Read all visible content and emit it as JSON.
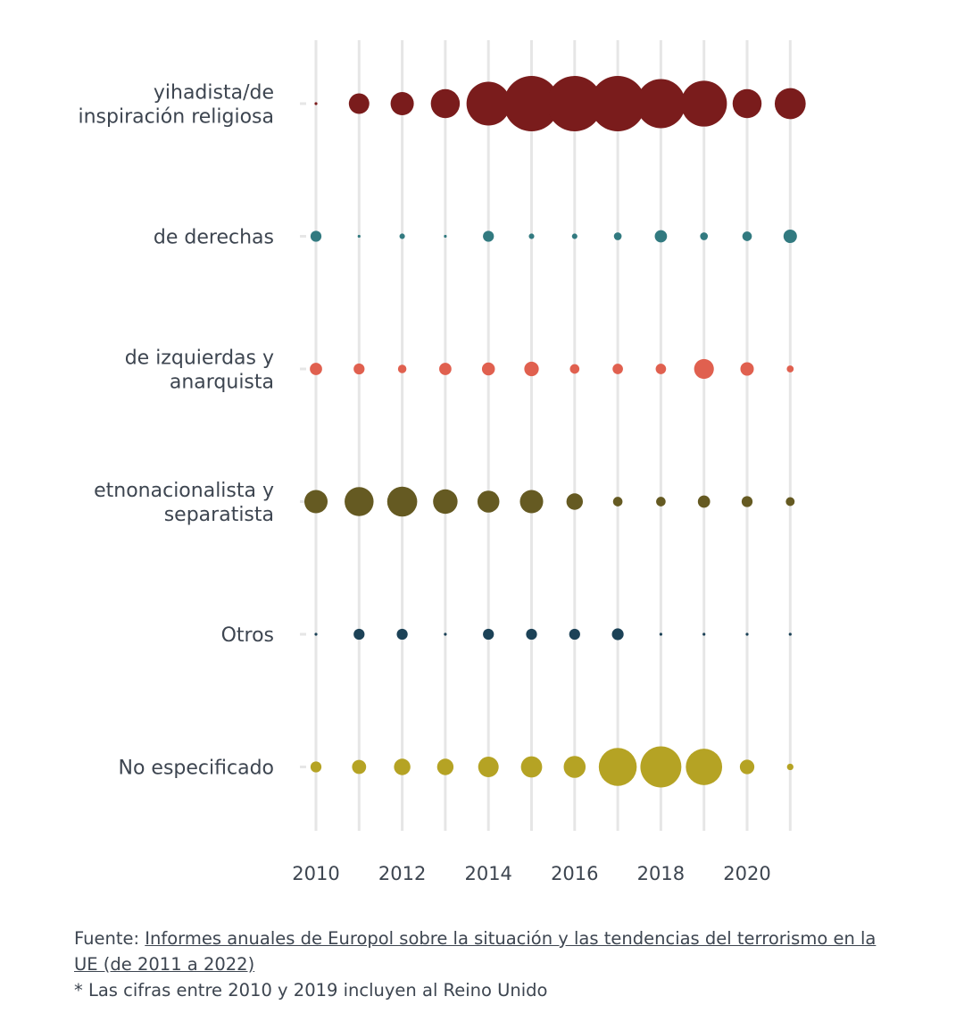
{
  "chart_data": {
    "type": "bubble",
    "title": "",
    "xlabel": "",
    "ylabel": "",
    "years": [
      2010,
      2011,
      2012,
      2013,
      2014,
      2015,
      2016,
      2017,
      2018,
      2019,
      2020,
      2021
    ],
    "x_ticks": [
      "2010",
      "2012",
      "2014",
      "2016",
      "2018",
      "2020"
    ],
    "grid": true,
    "series": [
      {
        "name": [
          "yihadista/de",
          "inspiración religiosa"
        ],
        "color": "#7a1c1c",
        "values": [
          0,
          7,
          9,
          14,
          32,
          51,
          51,
          51,
          40,
          35,
          14,
          16
        ]
      },
      {
        "name": [
          "de derechas"
        ],
        "color": "#327a80",
        "values": [
          2,
          0,
          0.5,
          0,
          2,
          0.5,
          0.5,
          1,
          2.5,
          1,
          1.5,
          3
        ]
      },
      {
        "name": [
          "de izquierdas y",
          "anarquista"
        ],
        "color": "#e0604f",
        "values": [
          2.5,
          2,
          1.2,
          2.5,
          2.8,
          3.5,
          1.5,
          1.8,
          1.8,
          6.5,
          3,
          0.8
        ]
      },
      {
        "name": [
          "etnonacionalista y",
          "separatista"
        ],
        "color": "#655a22",
        "values": [
          9,
          14,
          15,
          10,
          8,
          9,
          4.5,
          1.5,
          1.5,
          2.5,
          2,
          1.3
        ]
      },
      {
        "name": [
          "Otros"
        ],
        "color": "#1c4257",
        "values": [
          0,
          2,
          2,
          0,
          2,
          2,
          2,
          2.3,
          0,
          0,
          0,
          0
        ]
      },
      {
        "name": [
          "No especificado"
        ],
        "color": "#b5a324",
        "values": [
          2,
          3.3,
          4.5,
          4.5,
          7,
          7.5,
          8,
          24,
          28,
          22,
          3.5,
          0.7
        ]
      }
    ]
  },
  "footer": {
    "source_prefix": "Fuente: ",
    "source_link": "Informes anuales de Europol sobre la situación y las tendencias del terrorismo en la UE (de 2011 a 2022)",
    "note": "* Las cifras entre 2010 y 2019 incluyen al Reino Unido"
  }
}
